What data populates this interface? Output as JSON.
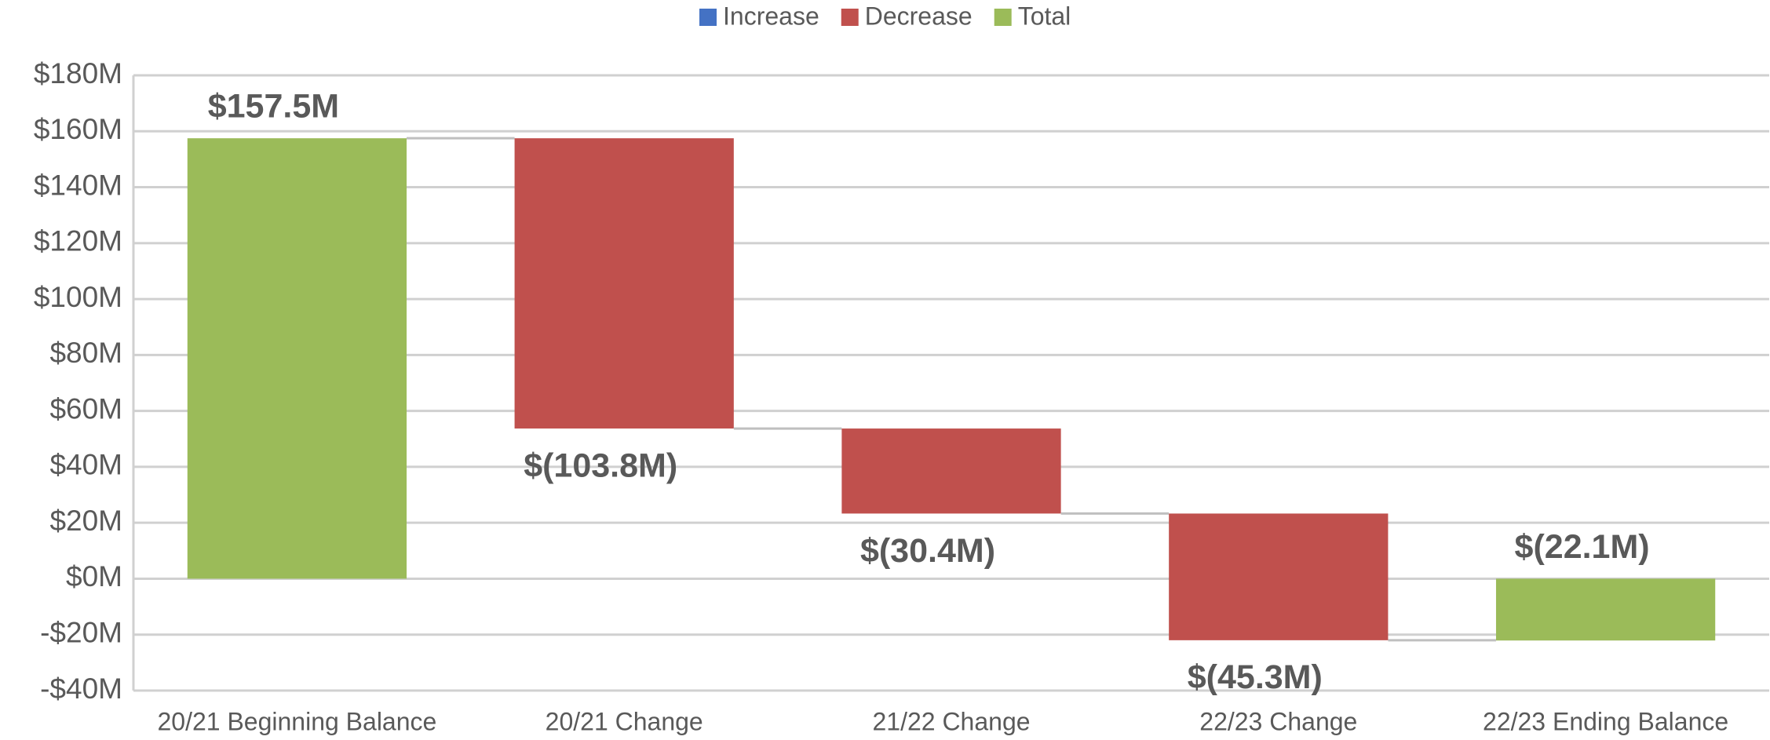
{
  "chart_data": {
    "type": "waterfall",
    "categories": [
      "20/21 Beginning Balance",
      "20/21 Change",
      "21/22 Change",
      "22/23 Change",
      "22/23 Ending Balance"
    ],
    "series": [
      {
        "name": "Increase",
        "color": "#4472c4",
        "values": [
          null,
          null,
          null,
          null,
          null
        ]
      },
      {
        "name": "Decrease",
        "color": "#c0504d",
        "values": [
          null,
          -103.8,
          -30.4,
          -45.3,
          null
        ],
        "value_labels": [
          null,
          "$(103.8M)",
          "$(30.4M)",
          "$(45.3M)",
          null
        ]
      },
      {
        "name": "Total",
        "color": "#9bbb59",
        "values": [
          157.5,
          null,
          null,
          null,
          -22.1
        ],
        "value_labels": [
          "$157.5M",
          null,
          null,
          null,
          "$(22.1M)"
        ]
      }
    ],
    "ylim": [
      -40,
      180
    ],
    "yticks": [
      {
        "value": -40,
        "label": "-$40M"
      },
      {
        "value": -20,
        "label": "-$20M"
      },
      {
        "value": 0,
        "label": "$0M"
      },
      {
        "value": 20,
        "label": "$20M"
      },
      {
        "value": 40,
        "label": "$40M"
      },
      {
        "value": 60,
        "label": "$60M"
      },
      {
        "value": 80,
        "label": "$80M"
      },
      {
        "value": 100,
        "label": "$100M"
      },
      {
        "value": 120,
        "label": "$120M"
      },
      {
        "value": 140,
        "label": "$140M"
      },
      {
        "value": 160,
        "label": "$160M"
      },
      {
        "value": 180,
        "label": "$180M"
      }
    ],
    "grid": true
  }
}
